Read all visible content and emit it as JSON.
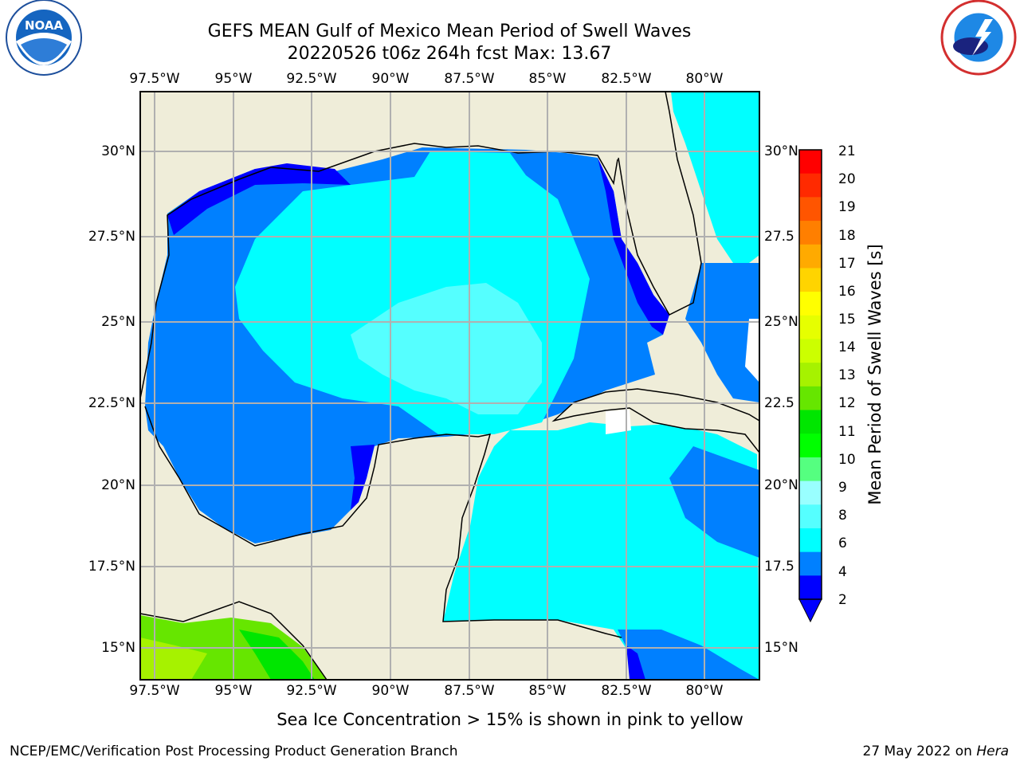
{
  "title": {
    "line1": "GEFS MEAN Gulf of Mexico Mean Period of Swell Waves",
    "line2": "20220526 t06z 264h fcst   Max: 13.67"
  },
  "map": {
    "lon_labels": [
      "97.5°W",
      "95°W",
      "92.5°W",
      "90°W",
      "87.5°W",
      "85°W",
      "82.5°W",
      "80°W"
    ],
    "lat_labels": [
      "30°N",
      "27.5°N",
      "25°N",
      "22.5°N",
      "20°N",
      "17.5°N",
      "15°N"
    ],
    "lat_labels_right": [
      "30°N",
      "27.5",
      "25°N",
      "22.5",
      "20°N",
      "17.5",
      "15°N"
    ]
  },
  "colorbar": {
    "label": "Mean Period of Swell Waves [s]",
    "ticks": [
      "21",
      "20",
      "19",
      "18",
      "17",
      "16",
      "15",
      "14",
      "13",
      "12",
      "11",
      "10",
      "9",
      "8",
      "6",
      "4",
      "2"
    ],
    "colors": [
      "#ff0000",
      "#ff2a00",
      "#ff5500",
      "#ff7f00",
      "#ffaa00",
      "#ffd400",
      "#ffff00",
      "#e6ff00",
      "#ccff00",
      "#a6f200",
      "#66e600",
      "#00e600",
      "#00ff00",
      "#55ff80",
      "#99ffff",
      "#55ffff",
      "#00ffff",
      "#0080ff",
      "#0000ff"
    ]
  },
  "logos": {
    "left": "NOAA",
    "right": "NATIONAL WEATHER SERVICE"
  },
  "note": "Sea Ice Concentration > 15% is shown in pink to yellow",
  "footer": {
    "left": "NCEP/EMC/Verification Post Processing Product Generation Branch",
    "right_prefix": "27 May 2022 on ",
    "right_host": "Hera"
  }
}
